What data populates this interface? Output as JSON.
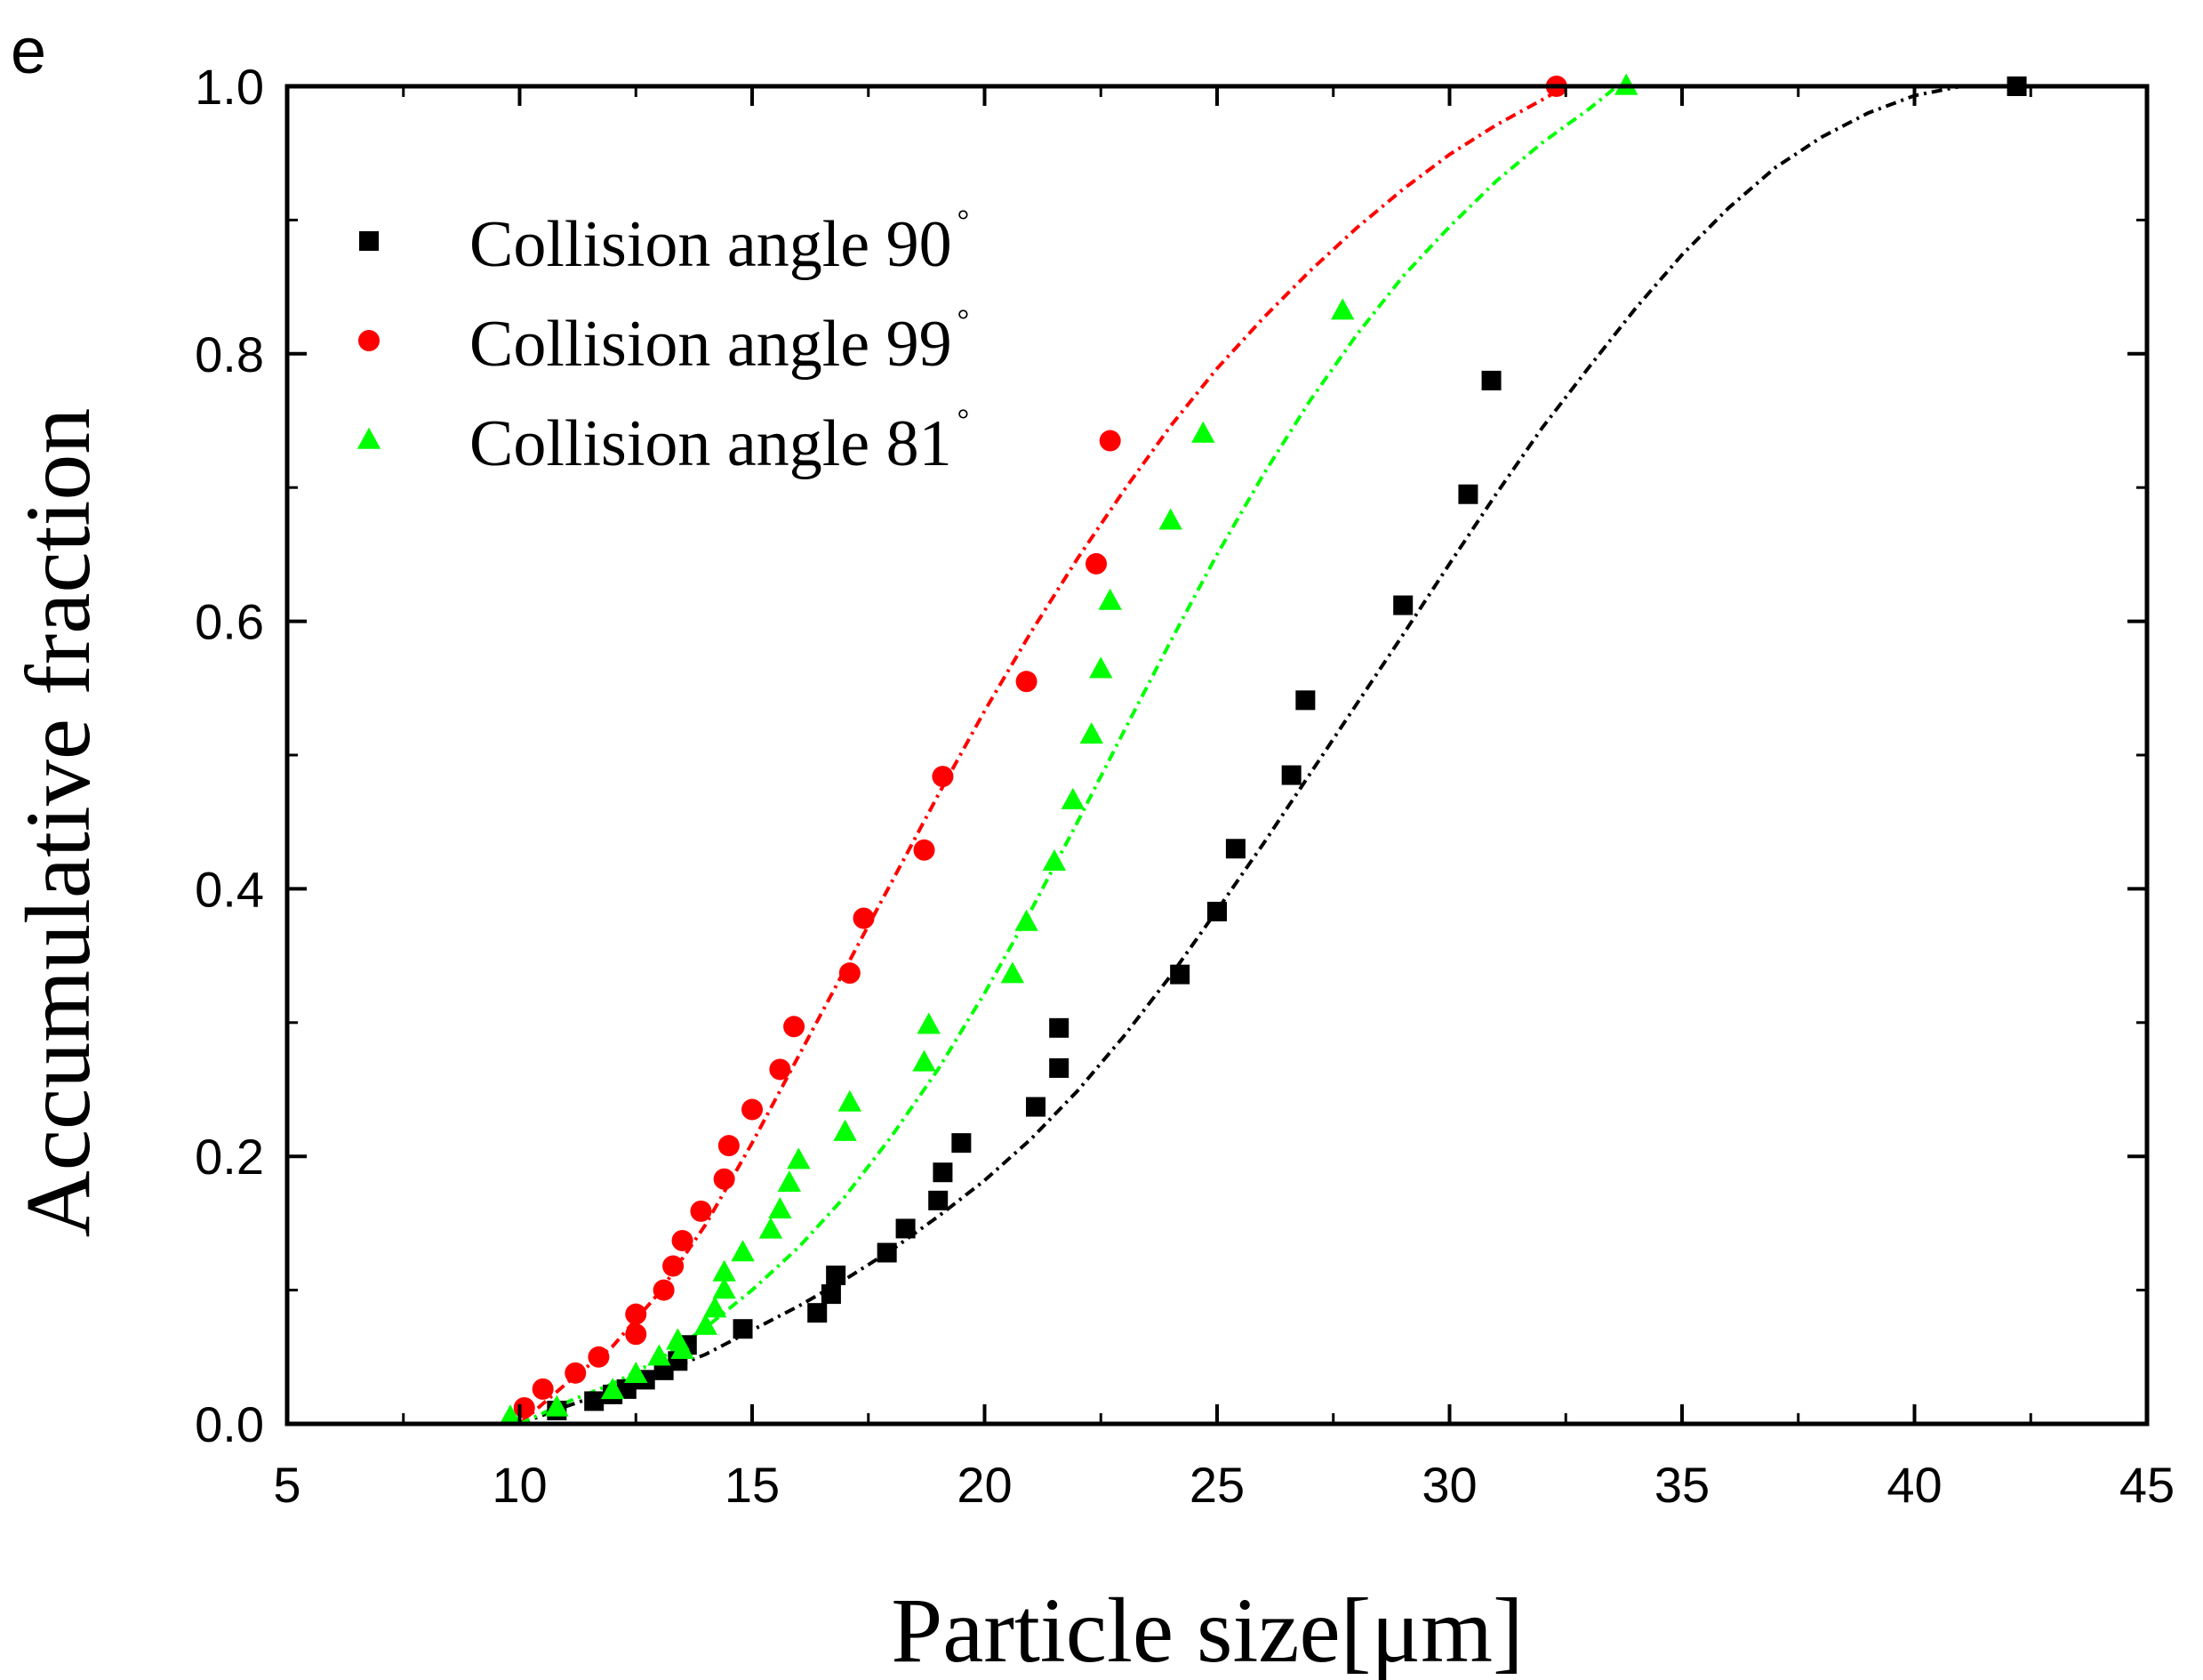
{
  "panel_label": "e",
  "chart_data": {
    "type": "scatter",
    "title": "",
    "xlabel": "Particle size[μm]",
    "ylabel": "Accumulative fraction",
    "xlim": [
      5,
      45
    ],
    "ylim": [
      0.0,
      1.0
    ],
    "xticks": [
      5,
      10,
      15,
      20,
      25,
      30,
      35,
      40,
      45
    ],
    "xtick_labels": [
      "5",
      "10",
      "15",
      "20",
      "25",
      "30",
      "35",
      "40",
      "45"
    ],
    "yticks": [
      0.0,
      0.2,
      0.4,
      0.6,
      0.8,
      1.0
    ],
    "ytick_labels": [
      "0.0",
      "0.2",
      "0.4",
      "0.6",
      "0.8",
      "1.0"
    ],
    "grid": false,
    "legend_position": "top-left",
    "series": [
      {
        "name": "Collision angle 90",
        "degree_mark": "°",
        "marker": "square",
        "color": "#000000",
        "x": [
          10.8,
          11.6,
          12.0,
          12.3,
          12.7,
          13.1,
          13.4,
          13.6,
          14.8,
          16.4,
          16.7,
          16.8,
          17.9,
          18.3,
          19.0,
          19.1,
          19.5,
          21.1,
          21.6,
          21.6,
          24.2,
          25.0,
          25.4,
          26.6,
          26.9,
          29.0,
          30.4,
          30.9,
          42.2
        ],
        "y": [
          0.01,
          0.017,
          0.022,
          0.026,
          0.033,
          0.04,
          0.047,
          0.059,
          0.071,
          0.083,
          0.097,
          0.111,
          0.128,
          0.146,
          0.167,
          0.188,
          0.21,
          0.237,
          0.266,
          0.296,
          0.336,
          0.383,
          0.43,
          0.485,
          0.541,
          0.612,
          0.695,
          0.78,
          1.0
        ],
        "fit": {
          "x": [
            10.0,
            11.0,
            12.0,
            13.0,
            14.0,
            15.0,
            16.0,
            17.0,
            18.0,
            19.0,
            20.0,
            21.0,
            22.0,
            23.0,
            24.0,
            25.0,
            26.0,
            27.0,
            28.0,
            29.0,
            30.0,
            31.0,
            32.0,
            33.0,
            34.0,
            35.0,
            36.0,
            37.0,
            38.0,
            39.0,
            40.0,
            41.0
          ],
          "y": [
            0.0,
            0.013,
            0.025,
            0.038,
            0.052,
            0.07,
            0.088,
            0.108,
            0.13,
            0.155,
            0.182,
            0.213,
            0.249,
            0.29,
            0.335,
            0.384,
            0.434,
            0.486,
            0.538,
            0.59,
            0.643,
            0.695,
            0.745,
            0.79,
            0.834,
            0.874,
            0.909,
            0.939,
            0.962,
            0.98,
            0.993,
            1.0
          ],
          "style": "dash-dot"
        }
      },
      {
        "name": "Collision angle 99",
        "degree_mark": "°",
        "marker": "circle",
        "color": "#ff0000",
        "x": [
          10.1,
          10.5,
          11.2,
          11.7,
          12.5,
          12.5,
          13.1,
          13.3,
          13.5,
          13.9,
          14.4,
          14.5,
          15.0,
          15.6,
          15.9,
          17.1,
          17.4,
          18.7,
          19.1,
          20.9,
          22.4,
          22.7,
          32.3
        ],
        "y": [
          0.012,
          0.026,
          0.038,
          0.05,
          0.067,
          0.082,
          0.1,
          0.118,
          0.137,
          0.159,
          0.183,
          0.208,
          0.235,
          0.265,
          0.297,
          0.337,
          0.378,
          0.429,
          0.484,
          0.555,
          0.643,
          0.735,
          1.0
        ],
        "fit": {
          "x": [
            10.0,
            11.0,
            12.0,
            13.0,
            14.0,
            15.0,
            16.0,
            17.0,
            18.0,
            19.0,
            20.0,
            21.0,
            22.0,
            23.0,
            24.0,
            25.0,
            26.0,
            27.0,
            28.0,
            29.0,
            30.0,
            31.0,
            32.0,
            32.5
          ],
          "y": [
            0.0,
            0.03,
            0.058,
            0.098,
            0.149,
            0.21,
            0.275,
            0.34,
            0.405,
            0.47,
            0.533,
            0.592,
            0.647,
            0.698,
            0.746,
            0.789,
            0.827,
            0.862,
            0.894,
            0.923,
            0.949,
            0.971,
            0.99,
            1.0
          ],
          "style": "dash-dot"
        }
      },
      {
        "name": "Collision angle 81",
        "degree_mark": "°",
        "marker": "triangle",
        "color": "#00ff00",
        "x": [
          9.8,
          10.8,
          12.0,
          12.5,
          13.0,
          13.4,
          13.5,
          14.0,
          14.2,
          14.4,
          14.4,
          14.8,
          15.4,
          15.6,
          15.8,
          16.0,
          17.0,
          17.1,
          18.7,
          18.8,
          20.6,
          20.9,
          21.5,
          21.9,
          22.3,
          22.5,
          22.7,
          24.0,
          24.7,
          27.7,
          33.8
        ],
        "y": [
          0.005,
          0.012,
          0.025,
          0.037,
          0.05,
          0.062,
          0.055,
          0.073,
          0.086,
          0.1,
          0.113,
          0.128,
          0.145,
          0.16,
          0.18,
          0.197,
          0.218,
          0.24,
          0.27,
          0.298,
          0.336,
          0.375,
          0.42,
          0.466,
          0.515,
          0.564,
          0.615,
          0.675,
          0.74,
          0.832,
          1.0
        ],
        "fit": {
          "x": [
            10.0,
            11.0,
            12.0,
            13.0,
            14.0,
            15.0,
            16.0,
            17.0,
            18.0,
            19.0,
            20.0,
            21.0,
            22.0,
            23.0,
            24.0,
            25.0,
            26.0,
            27.0,
            28.0,
            29.0,
            30.0,
            31.0,
            32.0,
            33.0,
            33.6
          ],
          "y": [
            0.0,
            0.016,
            0.03,
            0.048,
            0.072,
            0.1,
            0.132,
            0.17,
            0.215,
            0.265,
            0.322,
            0.384,
            0.45,
            0.518,
            0.585,
            0.65,
            0.71,
            0.765,
            0.814,
            0.858,
            0.895,
            0.929,
            0.958,
            0.983,
            1.0
          ],
          "style": "dash-dot"
        }
      }
    ]
  }
}
